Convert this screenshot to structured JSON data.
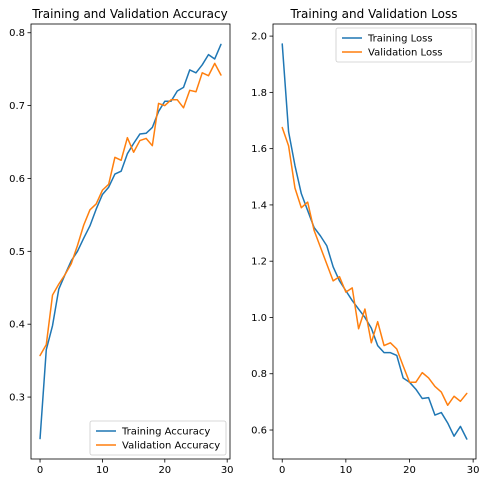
{
  "chart_data": [
    {
      "type": "line",
      "title": "Training and Validation Accuracy",
      "xlim": [
        -1.45,
        30.45
      ],
      "ylim": [
        0.215,
        0.812
      ],
      "xticks": [
        0,
        10,
        20,
        30
      ],
      "yticks": [
        0.3,
        0.4,
        0.5,
        0.6,
        0.7,
        0.8
      ],
      "xtick_labels": [
        "0",
        "10",
        "20",
        "30"
      ],
      "ytick_labels": [
        "0.3",
        "0.4",
        "0.5",
        "0.6",
        "0.7",
        "0.8"
      ],
      "legend_position": "lower-right",
      "x": [
        0,
        1,
        2,
        3,
        4,
        5,
        6,
        7,
        8,
        9,
        10,
        11,
        12,
        13,
        14,
        15,
        16,
        17,
        18,
        19,
        20,
        21,
        22,
        23,
        24,
        25,
        26,
        27,
        28,
        29
      ],
      "series": [
        {
          "name": "Training Accuracy",
          "color": "#1f77b4",
          "values": [
            0.243,
            0.365,
            0.398,
            0.448,
            0.468,
            0.487,
            0.5,
            0.518,
            0.535,
            0.558,
            0.578,
            0.588,
            0.606,
            0.61,
            0.634,
            0.648,
            0.661,
            0.662,
            0.67,
            0.692,
            0.706,
            0.706,
            0.72,
            0.725,
            0.749,
            0.745,
            0.756,
            0.77,
            0.764,
            0.784
          ]
        },
        {
          "name": "Validation Accuracy",
          "color": "#ff7f0e",
          "values": [
            0.357,
            0.372,
            0.44,
            0.455,
            0.468,
            0.483,
            0.508,
            0.536,
            0.557,
            0.565,
            0.584,
            0.592,
            0.629,
            0.625,
            0.656,
            0.636,
            0.652,
            0.655,
            0.645,
            0.703,
            0.7,
            0.708,
            0.708,
            0.697,
            0.721,
            0.719,
            0.745,
            0.741,
            0.758,
            0.742
          ]
        }
      ]
    },
    {
      "type": "line",
      "title": "Training and Validation Loss",
      "xlim": [
        -1.45,
        30.45
      ],
      "ylim": [
        0.497,
        2.043
      ],
      "xticks": [
        0,
        10,
        20,
        30
      ],
      "yticks": [
        0.6,
        0.8,
        1.0,
        1.2,
        1.4,
        1.6,
        1.8,
        2.0
      ],
      "xtick_labels": [
        "0",
        "10",
        "20",
        "30"
      ],
      "ytick_labels": [
        "0.6",
        "0.8",
        "1.0",
        "1.2",
        "1.4",
        "1.6",
        "1.8",
        "2.0"
      ],
      "legend_position": "upper-right",
      "x": [
        0,
        1,
        2,
        3,
        4,
        5,
        6,
        7,
        8,
        9,
        10,
        11,
        12,
        13,
        14,
        15,
        16,
        17,
        18,
        19,
        20,
        21,
        22,
        23,
        24,
        25,
        26,
        27,
        28,
        29
      ],
      "series": [
        {
          "name": "Training Loss",
          "color": "#1f77b4",
          "values": [
            1.972,
            1.66,
            1.54,
            1.44,
            1.38,
            1.32,
            1.29,
            1.255,
            1.18,
            1.13,
            1.095,
            1.06,
            1.03,
            1.0,
            0.962,
            0.9,
            0.875,
            0.875,
            0.865,
            0.785,
            0.77,
            0.745,
            0.712,
            0.715,
            0.653,
            0.662,
            0.625,
            0.578,
            0.613,
            0.568
          ]
        },
        {
          "name": "Validation Loss",
          "color": "#ff7f0e",
          "values": [
            1.675,
            1.61,
            1.46,
            1.39,
            1.41,
            1.31,
            1.25,
            1.19,
            1.13,
            1.145,
            1.09,
            1.105,
            0.96,
            1.03,
            0.91,
            0.985,
            0.9,
            0.91,
            0.888,
            0.828,
            0.77,
            0.77,
            0.804,
            0.785,
            0.755,
            0.735,
            0.688,
            0.72,
            0.702,
            0.73
          ]
        }
      ]
    }
  ]
}
